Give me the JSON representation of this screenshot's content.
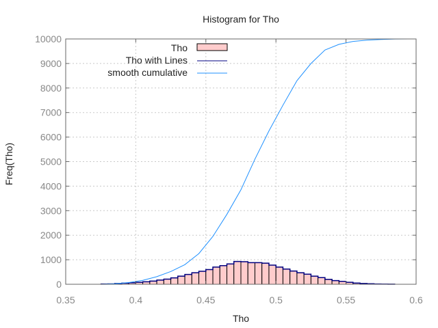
{
  "chart_data": {
    "type": "bar",
    "title": "Histogram for Tho",
    "xlabel": "Tho",
    "ylabel": "Freq(Tho)",
    "xlim": [
      0.35,
      0.6
    ],
    "ylim": [
      0,
      10000
    ],
    "grid": true,
    "legend_position": "top-left",
    "x_ticks": [
      "0.35",
      "0.4",
      "0.45",
      "0.5",
      "0.55",
      "0.6"
    ],
    "y_ticks": [
      "0",
      "1000",
      "2000",
      "3000",
      "4000",
      "5000",
      "6000",
      "7000",
      "8000",
      "9000",
      "10000"
    ],
    "bin_width": 0.005,
    "series": [
      {
        "name": "Tho",
        "kind": "histogram",
        "color": "#ffcccc",
        "edge_color": "#000000",
        "bin_centers": [
          0.3775,
          0.3825,
          0.3875,
          0.3925,
          0.3975,
          0.4025,
          0.4075,
          0.4125,
          0.4175,
          0.4225,
          0.4275,
          0.4325,
          0.4375,
          0.4425,
          0.4475,
          0.4525,
          0.4575,
          0.4625,
          0.4675,
          0.4725,
          0.4775,
          0.4825,
          0.4875,
          0.4925,
          0.4975,
          0.5025,
          0.5075,
          0.5125,
          0.5175,
          0.5225,
          0.5275,
          0.5325,
          0.5375,
          0.5425,
          0.5475,
          0.5525,
          0.5575,
          0.5625,
          0.5675,
          0.5725,
          0.5775,
          0.5825
        ],
        "values": [
          10,
          15,
          30,
          45,
          60,
          80,
          100,
          130,
          170,
          210,
          260,
          330,
          400,
          470,
          530,
          600,
          700,
          760,
          830,
          930,
          920,
          880,
          880,
          860,
          780,
          700,
          620,
          540,
          470,
          410,
          330,
          270,
          200,
          150,
          120,
          80,
          50,
          30,
          20,
          10,
          8,
          5
        ]
      },
      {
        "name": "Tho with Lines",
        "kind": "line",
        "color": "#000080"
      },
      {
        "name": "smooth cumulative",
        "kind": "line",
        "color": "#1e90ff",
        "x": [
          0.375,
          0.385,
          0.395,
          0.405,
          0.415,
          0.425,
          0.435,
          0.445,
          0.455,
          0.465,
          0.475,
          0.485,
          0.495,
          0.505,
          0.515,
          0.525,
          0.535,
          0.545,
          0.555,
          0.565,
          0.575,
          0.585,
          0.595,
          0.6
        ],
        "values": [
          0,
          20,
          70,
          160,
          310,
          520,
          800,
          1250,
          1950,
          2850,
          3850,
          5100,
          6250,
          7300,
          8300,
          9000,
          9550,
          9780,
          9900,
          9950,
          9980,
          9995,
          10000,
          10000
        ]
      }
    ]
  }
}
